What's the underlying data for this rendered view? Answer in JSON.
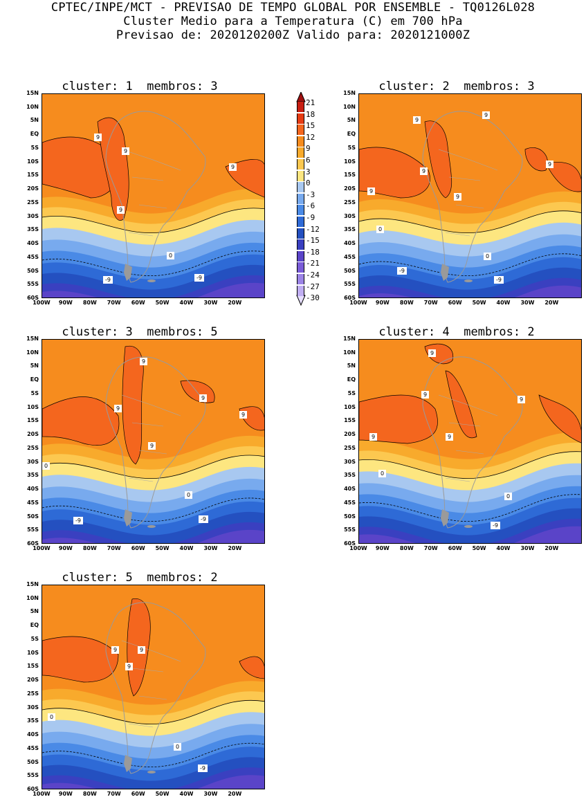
{
  "header": {
    "line1": "CPTEC/INPE/MCT - PREVISAO DE TEMPO GLOBAL POR ENSEMBLE - TQ0126L028",
    "line2": "Cluster Medio para a Temperatura (C) em 700 hPa",
    "line3": "Previsao de: 2020120200Z   Valido para: 2020121000Z"
  },
  "axes": {
    "lat_labels": [
      "15N",
      "10N",
      "5N",
      "EQ",
      "5S",
      "10S",
      "15S",
      "20S",
      "25S",
      "30S",
      "35S",
      "40S",
      "45S",
      "50S",
      "55S",
      "60S"
    ],
    "lon_labels": [
      "100W",
      "90W",
      "80W",
      "70W",
      "60W",
      "50W",
      "40W",
      "30W",
      "20W"
    ]
  },
  "colorbar": {
    "labels": [
      "21",
      "18",
      "15",
      "12",
      "9",
      "6",
      "3",
      "0",
      "-3",
      "-6",
      "-9",
      "-12",
      "-15",
      "-18",
      "-21",
      "-24",
      "-27",
      "-30"
    ],
    "colors": [
      "#a01010",
      "#c81e12",
      "#e63c14",
      "#f4661e",
      "#f68c1e",
      "#f8aa2c",
      "#fcc850",
      "#fde680",
      "#a8c8f0",
      "#78aaee",
      "#4a8ae6",
      "#2e6ad6",
      "#2450c0",
      "#3a40c0",
      "#5a44c8",
      "#7a5cd8",
      "#9c84e6",
      "#c0aef2"
    ]
  },
  "panels": [
    {
      "cluster_label": "cluster:",
      "cluster_num": "1",
      "members_label": "membros:",
      "members_num": "3",
      "contour_labels": [
        "9",
        "9",
        "9",
        "9",
        "0",
        "-9",
        "-9"
      ]
    },
    {
      "cluster_label": "cluster:",
      "cluster_num": "2",
      "members_label": "membros:",
      "members_num": "3",
      "contour_labels": [
        "9",
        "9",
        "9",
        "9",
        "9",
        "9",
        "0",
        "0",
        "-9",
        "-9"
      ]
    },
    {
      "cluster_label": "cluster:",
      "cluster_num": "3",
      "members_label": "membros:",
      "members_num": "5",
      "contour_labels": [
        "9",
        "9",
        "9",
        "9",
        "9",
        "0",
        "0",
        "-9",
        "-9"
      ]
    },
    {
      "cluster_label": "cluster:",
      "cluster_num": "4",
      "members_label": "membros:",
      "members_num": "2",
      "contour_labels": [
        "9",
        "9",
        "9",
        "9",
        "9",
        "0",
        "0",
        "-9"
      ]
    },
    {
      "cluster_label": "cluster:",
      "cluster_num": "5",
      "members_label": "membros:",
      "members_num": "2",
      "contour_labels": [
        "9",
        "9",
        "9",
        "0",
        "0",
        "-9"
      ]
    }
  ]
}
